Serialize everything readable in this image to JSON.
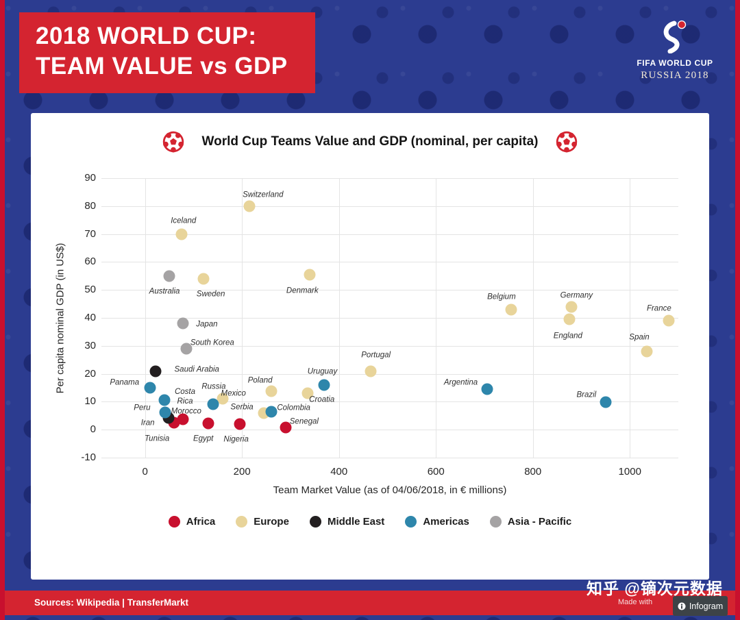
{
  "header": {
    "title_line1": "2018 WORLD CUP:",
    "title_line2": "TEAM VALUE vs GDP"
  },
  "logo": {
    "name": "FIFA WORLD CUP",
    "year": "RUSSIA 2018"
  },
  "watermark": "知乎 @镝次元数据",
  "footer": {
    "sources": "Sources: Wikipedia | TransferMarkt",
    "made_with": "Made with",
    "brand": "Infogram"
  },
  "chart_data": {
    "type": "scatter",
    "title": "World Cup Teams Value and GDP (nominal, per capita)",
    "xlabel": "Team Market Value (as of 04/06/2018, in € millions)",
    "ylabel": "Per capita nominal GDP (in US$)",
    "x_ticks": [
      0,
      200,
      400,
      600,
      800,
      1000
    ],
    "y_ticks": [
      90,
      80,
      70,
      60,
      50,
      40,
      30,
      20,
      10,
      0,
      -10
    ],
    "xlim": [
      -90,
      1100
    ],
    "ylim": [
      -10,
      90
    ],
    "grid": true,
    "legend_position": "bottom",
    "units": {
      "x": "€ millions",
      "y": "thousand US$ (axis shown 0–90)"
    },
    "series": [
      {
        "name": "Africa",
        "color": "#c8102e",
        "points": [
          {
            "team": "Tunisia",
            "x": 60,
            "y": 2.5,
            "dx": -25,
            "dy": 24
          },
          {
            "team": "Morocco",
            "x": 78,
            "y": 3.8,
            "dx": 5,
            "dy": -11
          },
          {
            "team": "Egypt",
            "x": 130,
            "y": 2.2,
            "dx": -7,
            "dy": 23
          },
          {
            "team": "Nigeria",
            "x": 195,
            "y": 2,
            "dx": -5,
            "dy": 23
          },
          {
            "team": "Senegal",
            "x": 290,
            "y": 0.8,
            "dx": 27,
            "dy": -8
          }
        ]
      },
      {
        "name": "Europe",
        "color": "#e8d49a",
        "points": [
          {
            "team": "Switzerland",
            "x": 215,
            "y": 80,
            "dx": 20,
            "dy": -16
          },
          {
            "team": "Iceland",
            "x": 75,
            "y": 70,
            "dx": 3,
            "dy": -19
          },
          {
            "team": "Sweden",
            "x": 120,
            "y": 54,
            "dx": 11,
            "dy": 23
          },
          {
            "team": "Denmark",
            "x": 340,
            "y": 55.5,
            "dx": -11,
            "dy": 24
          },
          {
            "team": "Russia",
            "x": 160,
            "y": 11,
            "dx": -13,
            "dy": -17
          },
          {
            "team": "Poland",
            "x": 260,
            "y": 13.8,
            "dx": -16,
            "dy": -15
          },
          {
            "team": "Croatia",
            "x": 335,
            "y": 13,
            "dx": 21,
            "dy": 10
          },
          {
            "team": "Serbia",
            "x": 245,
            "y": 6,
            "dx": -32,
            "dy": -8
          },
          {
            "team": "Portugal",
            "x": 465,
            "y": 21,
            "dx": 8,
            "dy": -23
          },
          {
            "team": "Belgium",
            "x": 755,
            "y": 43,
            "dx": -14,
            "dy": -18
          },
          {
            "team": "Germany",
            "x": 880,
            "y": 44,
            "dx": 7,
            "dy": -16
          },
          {
            "team": "England",
            "x": 875,
            "y": 39.5,
            "dx": -2,
            "dy": 25
          },
          {
            "team": "France",
            "x": 1080,
            "y": 39,
            "dx": -14,
            "dy": -17
          },
          {
            "team": "Spain",
            "x": 1035,
            "y": 28,
            "dx": -11,
            "dy": -20
          }
        ]
      },
      {
        "name": "Middle East",
        "color": "#231f20",
        "points": [
          {
            "team": "Saudi Arabia",
            "x": 22,
            "y": 21,
            "dx": 60,
            "dy": -2
          },
          {
            "team": "Iran",
            "x": 48,
            "y": 4.2,
            "dx": -30,
            "dy": 8
          }
        ]
      },
      {
        "name": "Americas",
        "color": "#2e86ab",
        "points": [
          {
            "team": "Panama",
            "x": 10,
            "y": 15,
            "dx": -37,
            "dy": -7
          },
          {
            "team": "Costa Rica",
            "label": "Costa\nRica",
            "x": 40,
            "y": 10.5,
            "dx": 30,
            "dy": -5
          },
          {
            "team": "Peru",
            "x": 42,
            "y": 6.2,
            "dx": -34,
            "dy": -6
          },
          {
            "team": "Mexico",
            "x": 140,
            "y": 9,
            "dx": 30,
            "dy": -15
          },
          {
            "team": "Colombia",
            "x": 260,
            "y": 6.3,
            "dx": 33,
            "dy": -5
          },
          {
            "team": "Uruguay",
            "x": 370,
            "y": 16,
            "dx": -3,
            "dy": -19
          },
          {
            "team": "Argentina",
            "x": 705,
            "y": 14.4,
            "dx": -38,
            "dy": -9
          },
          {
            "team": "Brazil",
            "x": 950,
            "y": 9.8,
            "dx": -28,
            "dy": -10
          }
        ]
      },
      {
        "name": "Asia - Pacific",
        "color": "#a5a3a4",
        "points": [
          {
            "team": "Australia",
            "x": 50,
            "y": 55,
            "dx": -7,
            "dy": 23
          },
          {
            "team": "Japan",
            "x": 78,
            "y": 38,
            "dx": 35,
            "dy": 2
          },
          {
            "team": "South Korea",
            "x": 85,
            "y": 29,
            "dx": 38,
            "dy": -8
          }
        ]
      }
    ]
  }
}
